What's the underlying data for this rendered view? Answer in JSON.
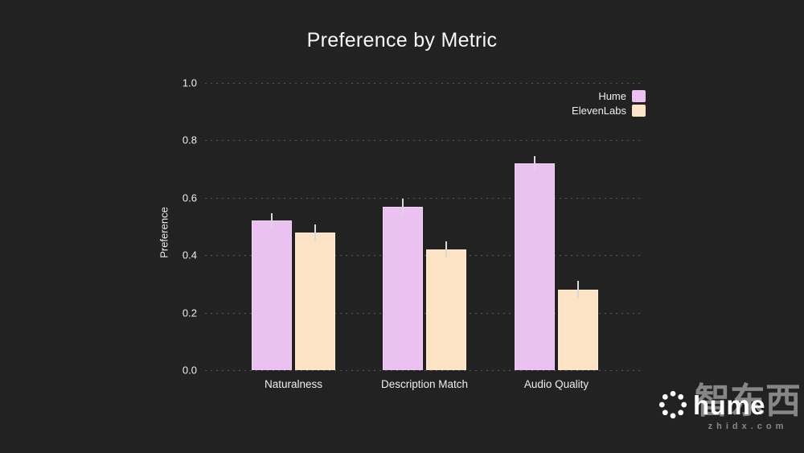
{
  "title": "Preference by Metric",
  "colors": {
    "background": "#222222",
    "hume_bar": "#EAC1F0",
    "elevenlabs_bar": "#FCE3C4",
    "gridline": "#585858",
    "error_bar": "#D9D9D9",
    "text": "#F1EDE9"
  },
  "chart_data": {
    "type": "bar",
    "title": "Preference by Metric",
    "xlabel": "",
    "ylabel": "Preference",
    "ylim": [
      0,
      1.0
    ],
    "yticks": [
      0.0,
      0.2,
      0.4,
      0.6,
      0.8,
      1.0
    ],
    "grid": "horizontal dashed",
    "legend_position": "upper right",
    "categories": [
      "Naturalness",
      "Description Match",
      "Audio Quality"
    ],
    "series": [
      {
        "name": "Hume",
        "color": "#EAC1F0",
        "values": [
          0.52,
          0.57,
          0.72
        ],
        "errors": [
          0.025,
          0.028,
          0.026
        ]
      },
      {
        "name": "ElevenLabs",
        "color": "#FCE3C4",
        "values": [
          0.48,
          0.42,
          0.28
        ],
        "errors": [
          0.028,
          0.028,
          0.03
        ]
      }
    ]
  },
  "footer": {
    "logo_text": "hume",
    "watermark_cjk": "智东西",
    "watermark_domain": "zhidx.com"
  }
}
